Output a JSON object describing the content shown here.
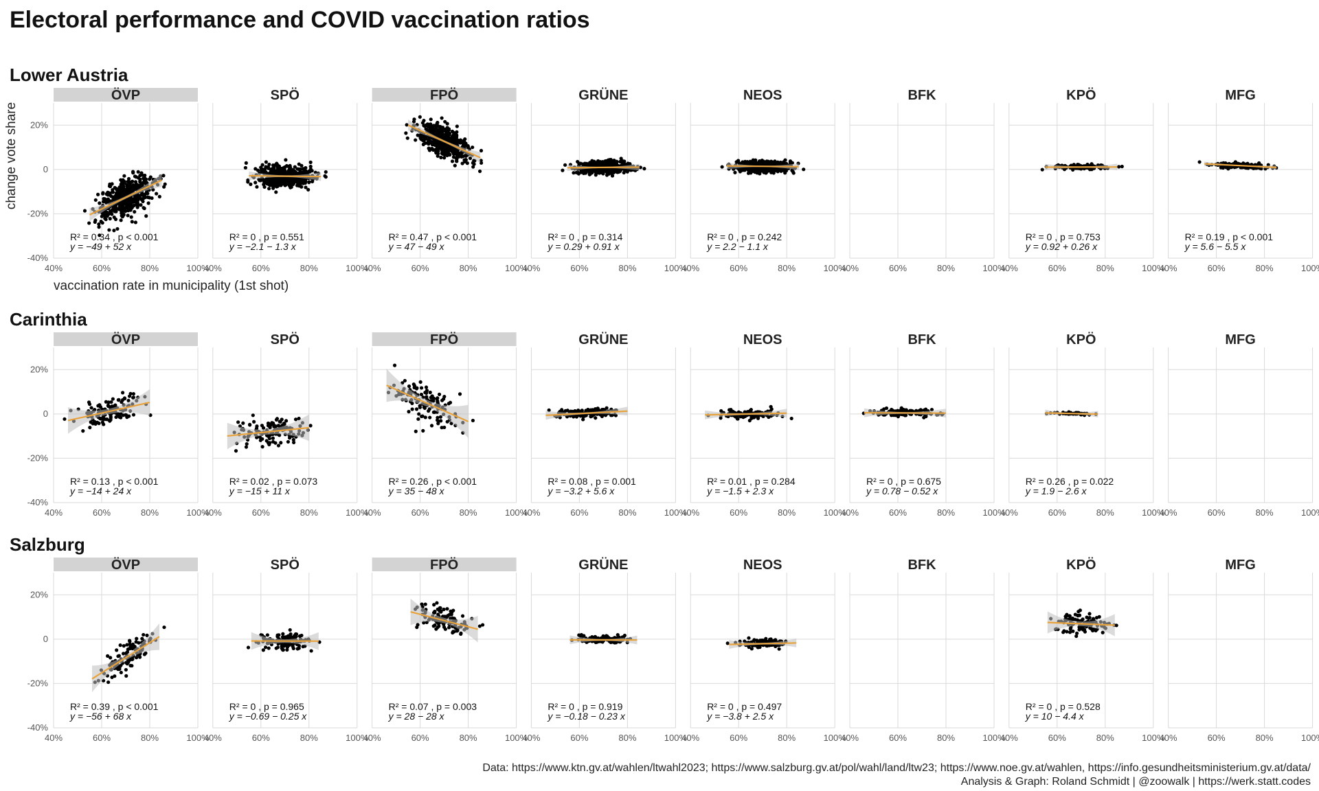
{
  "title": "Electoral performance and COVID vaccination ratios",
  "caption_lines": [
    "Data: https://www.ktn.gv.at/wahlen/ltwahl2023; https://www.salzburg.gv.at/pol/wahl/land/ltw23; https://www.noe.gv.at/wahlen, https://info.gesundheitsministerium.gv.at/data/",
    "Analysis & Graph: Roland Schmidt | @zoowalk | https://werk.statt.codes"
  ],
  "colors": {
    "point": "#000000",
    "trend": "#E8A33D",
    "ci": "#BDBDBD",
    "strip_highlight": "#D3D3D3",
    "grid": "#D9D9D9"
  },
  "chart_data": {
    "type": "scatter",
    "facet_layout": "grid",
    "ylabel": "change vote share",
    "xlabel": "vaccination rate in municipality (1st shot)",
    "x_ticks": [
      "40%",
      "60%",
      "80%",
      "100%"
    ],
    "y_ticks": [
      "-40%",
      "-20%",
      "0",
      "20%"
    ],
    "xlim": [
      0.4,
      1.0
    ],
    "ylim": [
      -0.4,
      0.3
    ],
    "parties": [
      "ÖVP",
      "SPÖ",
      "FPÖ",
      "GRÜNE",
      "NEOS",
      "BFK",
      "KPÖ",
      "MFG"
    ],
    "highlighted_parties": [
      "ÖVP",
      "FPÖ"
    ],
    "regions": [
      {
        "name": "Lower Austria",
        "panels": [
          {
            "party": "ÖVP",
            "intercept": -0.49,
            "slope": 0.52,
            "x_range": [
              0.55,
              0.85
            ],
            "resid_sd": 0.04,
            "n": 500,
            "ci": 0.006,
            "stats_line1": "R² = 0.34 , p < 0.001",
            "stats_line2": "y = −49 + 52 x"
          },
          {
            "party": "SPÖ",
            "intercept": -0.021,
            "slope": -0.013,
            "x_range": [
              0.55,
              0.85
            ],
            "resid_sd": 0.025,
            "n": 500,
            "ci": 0.004,
            "stats_line1": "R² = 0 , p = 0.551",
            "stats_line2": "y = −2.1 − 1.3 x"
          },
          {
            "party": "FPÖ",
            "intercept": 0.47,
            "slope": -0.49,
            "x_range": [
              0.55,
              0.85
            ],
            "resid_sd": 0.03,
            "n": 500,
            "ci": 0.005,
            "stats_line1": "R² = 0.47 , p < 0.001",
            "stats_line2": "y = 47 − 49 x"
          },
          {
            "party": "GRÜNE",
            "intercept": 0.0029,
            "slope": 0.0091,
            "x_range": [
              0.55,
              0.85
            ],
            "resid_sd": 0.012,
            "n": 500,
            "ci": 0.003,
            "stats_line1": "R² = 0 , p = 0.314",
            "stats_line2": "y = 0.29 + 0.91 x"
          },
          {
            "party": "NEOS",
            "intercept": 0.022,
            "slope": -0.011,
            "x_range": [
              0.55,
              0.85
            ],
            "resid_sd": 0.012,
            "n": 500,
            "ci": 0.003,
            "stats_line1": "R² = 0 , p = 0.242",
            "stats_line2": "y = 2.2 − 1.1 x"
          },
          {
            "party": "BFK",
            "empty": true
          },
          {
            "party": "KPÖ",
            "intercept": 0.0092,
            "slope": 0.0026,
            "x_range": [
              0.55,
              0.85
            ],
            "resid_sd": 0.005,
            "n": 120,
            "ci": 0.003,
            "stats_line1": "R² = 0 , p = 0.753",
            "stats_line2": "y = 0.92 + 0.26 x"
          },
          {
            "party": "MFG",
            "intercept": 0.056,
            "slope": -0.055,
            "x_range": [
              0.55,
              0.85
            ],
            "resid_sd": 0.006,
            "n": 150,
            "ci": 0.002,
            "stats_line1": "R² = 0.19 , p < 0.001",
            "stats_line2": "y = 5.6 − 5.5 x"
          }
        ]
      },
      {
        "name": "Carinthia",
        "panels": [
          {
            "party": "ÖVP",
            "intercept": -0.14,
            "slope": 0.24,
            "x_range": [
              0.46,
              0.8
            ],
            "resid_sd": 0.03,
            "n": 130,
            "ci": 0.012,
            "stats_line1": "R² = 0.13 , p < 0.001",
            "stats_line2": "y = −14 + 24 x"
          },
          {
            "party": "SPÖ",
            "intercept": -0.15,
            "slope": 0.11,
            "x_range": [
              0.46,
              0.8
            ],
            "resid_sd": 0.03,
            "n": 130,
            "ci": 0.012,
            "stats_line1": "R² = 0.02 , p = 0.073",
            "stats_line2": "y = −15 + 11 x"
          },
          {
            "party": "FPÖ",
            "intercept": 0.35,
            "slope": -0.48,
            "x_range": [
              0.46,
              0.8
            ],
            "resid_sd": 0.04,
            "n": 130,
            "ci": 0.015,
            "stats_line1": "R² = 0.26 , p < 0.001",
            "stats_line2": "y = 35 − 48 x"
          },
          {
            "party": "GRÜNE",
            "intercept": -0.032,
            "slope": 0.056,
            "x_range": [
              0.46,
              0.8
            ],
            "resid_sd": 0.01,
            "n": 130,
            "ci": 0.004,
            "stats_line1": "R² = 0.08 , p = 0.001",
            "stats_line2": "y = −3.2 + 5.6 x"
          },
          {
            "party": "NEOS",
            "intercept": -0.015,
            "slope": 0.023,
            "x_range": [
              0.46,
              0.8
            ],
            "resid_sd": 0.01,
            "n": 130,
            "ci": 0.004,
            "stats_line1": "R² = 0.01 , p = 0.284",
            "stats_line2": "y = −1.5 + 2.3 x"
          },
          {
            "party": "BFK",
            "intercept": 0.0078,
            "slope": -0.0052,
            "x_range": [
              0.46,
              0.8
            ],
            "resid_sd": 0.008,
            "n": 130,
            "ci": 0.004,
            "stats_line1": "R² = 0 , p = 0.675",
            "stats_line2": "y = 0.78 − 0.52 x"
          },
          {
            "party": "KPÖ",
            "intercept": 0.019,
            "slope": -0.026,
            "x_range": [
              0.55,
              0.77
            ],
            "resid_sd": 0.003,
            "n": 40,
            "ci": 0.003,
            "stats_line1": "R² = 0.26 , p = 0.022",
            "stats_line2": "y = 1.9 − 2.6 x"
          },
          {
            "party": "MFG",
            "empty": true
          }
        ]
      },
      {
        "name": "Salzburg",
        "panels": [
          {
            "party": "ÖVP",
            "intercept": -0.56,
            "slope": 0.68,
            "x_range": [
              0.56,
              0.84
            ],
            "resid_sd": 0.03,
            "n": 119,
            "ci": 0.012,
            "stats_line1": "R² = 0.39 , p < 0.001",
            "stats_line2": "y = −56 + 68 x"
          },
          {
            "party": "SPÖ",
            "intercept": -0.0069,
            "slope": -0.0025,
            "x_range": [
              0.56,
              0.84
            ],
            "resid_sd": 0.02,
            "n": 119,
            "ci": 0.008,
            "stats_line1": "R² = 0 , p = 0.965",
            "stats_line2": "y = −0.69 − 0.25 x"
          },
          {
            "party": "FPÖ",
            "intercept": 0.28,
            "slope": -0.28,
            "x_range": [
              0.56,
              0.84
            ],
            "resid_sd": 0.03,
            "n": 119,
            "ci": 0.012,
            "stats_line1": "R² = 0.07 , p = 0.003",
            "stats_line2": "y = 28 − 28 x"
          },
          {
            "party": "GRÜNE",
            "intercept": -0.0018,
            "slope": -0.0023,
            "x_range": [
              0.56,
              0.84
            ],
            "resid_sd": 0.008,
            "n": 119,
            "ci": 0.004,
            "stats_line1": "R² = 0 , p = 0.919",
            "stats_line2": "y = −0.18 − 0.23 x"
          },
          {
            "party": "NEOS",
            "intercept": -0.038,
            "slope": 0.025,
            "x_range": [
              0.56,
              0.84
            ],
            "resid_sd": 0.01,
            "n": 119,
            "ci": 0.004,
            "stats_line1": "R² = 0 , p = 0.497",
            "stats_line2": "y = −3.8 + 2.5 x"
          },
          {
            "party": "BFK",
            "empty": true
          },
          {
            "party": "KPÖ",
            "intercept": 0.1,
            "slope": -0.044,
            "x_range": [
              0.56,
              0.84
            ],
            "resid_sd": 0.025,
            "n": 119,
            "ci": 0.01,
            "stats_line1": "R² = 0 , p = 0.528",
            "stats_line2": "y = 10 − 4.4 x"
          },
          {
            "party": "MFG",
            "empty": true
          }
        ]
      }
    ]
  }
}
